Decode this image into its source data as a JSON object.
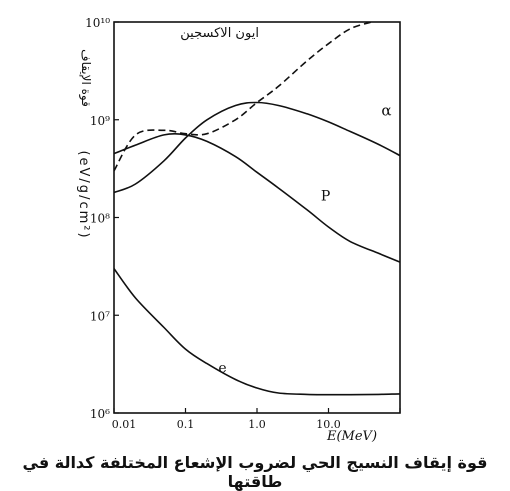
{
  "caption": "قوة إيقاف النسيج الحي لضروب الإشعاع المختلفة كدالة في طاقتها",
  "chart_data": {
    "type": "line",
    "log_x": true,
    "log_y": true,
    "xlim": [
      0.01,
      100
    ],
    "ylim": [
      1000000,
      10000000000
    ],
    "xlabel": "E(MeV)",
    "ylabel_ar": "قوة الإيقاف",
    "ylabel_units": "(eV/g/cm²)",
    "x_tick_labels": [
      "0.01",
      "0.1",
      "1.0",
      "10.0"
    ],
    "y_tick_labels": [
      "10⁶",
      "10⁷",
      "10⁸",
      "10⁹",
      "10¹⁰"
    ],
    "grid": false,
    "series": [
      {
        "name": "α",
        "dash": false,
        "x": [
          0.01,
          0.02,
          0.05,
          0.1,
          0.2,
          0.5,
          1,
          2,
          5,
          10,
          20,
          50,
          100
        ],
        "y": [
          180000000,
          220000000,
          380000000,
          650000000,
          1000000000,
          1400000000,
          1500000000,
          1400000000,
          1150000000,
          950000000,
          760000000,
          560000000,
          430000000
        ]
      },
      {
        "name": "P",
        "dash": false,
        "x": [
          0.01,
          0.02,
          0.05,
          0.1,
          0.2,
          0.5,
          1,
          2,
          5,
          10,
          20,
          50,
          100
        ],
        "y": [
          450000000,
          550000000,
          700000000,
          700000000,
          600000000,
          420000000,
          290000000,
          200000000,
          120000000,
          80000000,
          57000000,
          43000000,
          35000000
        ]
      },
      {
        "name": "e",
        "dash": false,
        "x": [
          0.01,
          0.02,
          0.05,
          0.1,
          0.2,
          0.5,
          1,
          2,
          5,
          10,
          20,
          50,
          100
        ],
        "y": [
          30000000,
          15000000,
          7500000,
          4500000,
          3200000,
          2200000,
          1800000,
          1600000,
          1550000,
          1540000,
          1540000,
          1550000,
          1570000
        ]
      },
      {
        "name": "ايون الاكسجين",
        "dash": true,
        "x": [
          0.01,
          0.02,
          0.05,
          0.1,
          0.2,
          0.5,
          1,
          2,
          5,
          10,
          20,
          40
        ],
        "y": [
          300000000,
          700000000,
          780000000,
          720000000,
          720000000,
          1000000000,
          1500000000,
          2200000000,
          4000000000,
          6000000000,
          8500000000,
          10000000000
        ]
      }
    ]
  }
}
